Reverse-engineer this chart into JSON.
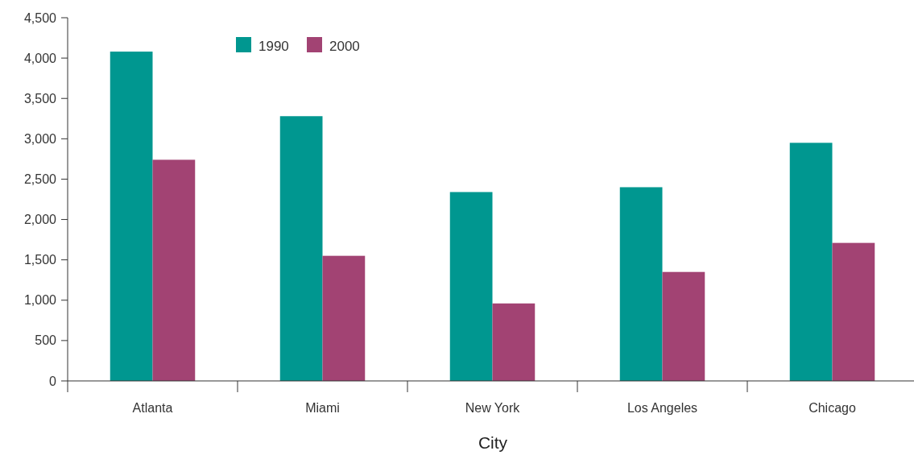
{
  "chart_data": {
    "type": "bar",
    "xlabel": "City",
    "categories": [
      "Atlanta",
      "Miami",
      "New York",
      "Los Angeles",
      "Chicago"
    ],
    "series": [
      {
        "name": "1990",
        "color": "#009790",
        "values": [
          4080,
          3280,
          2340,
          2400,
          2950
        ]
      },
      {
        "name": "2000",
        "color": "#a24373",
        "values": [
          2740,
          1550,
          960,
          1350,
          1710
        ]
      }
    ],
    "ylim": [
      0,
      4500
    ],
    "yticks": [
      {
        "value": 0,
        "label": "0"
      },
      {
        "value": 500,
        "label": "500"
      },
      {
        "value": 1000,
        "label": "1,000"
      },
      {
        "value": 1500,
        "label": "1,500"
      },
      {
        "value": 2000,
        "label": "2,000"
      },
      {
        "value": 2500,
        "label": "2,500"
      },
      {
        "value": 3000,
        "label": "3,000"
      },
      {
        "value": 3500,
        "label": "3,500"
      },
      {
        "value": 4000,
        "label": "4,000"
      },
      {
        "value": 4500,
        "label": "4,500"
      }
    ],
    "grid": false,
    "legend": "top left"
  }
}
